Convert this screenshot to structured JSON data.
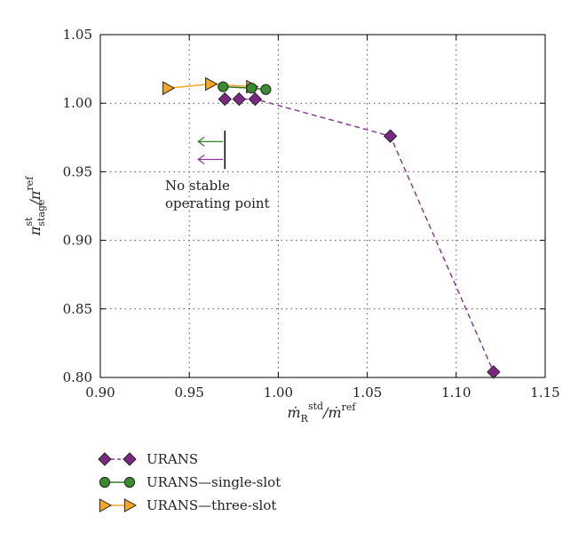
{
  "chart_data": {
    "type": "scatter",
    "xlim": [
      0.9,
      1.15
    ],
    "ylim": [
      0.8,
      1.05
    ],
    "x_ticks": [
      0.9,
      0.95,
      1.0,
      1.05,
      1.1,
      1.15
    ],
    "y_ticks": [
      0.8,
      0.85,
      0.9,
      0.95,
      1.0,
      1.05
    ],
    "x_tick_labels": [
      "0.90",
      "0.95",
      "1.00",
      "1.05",
      "1.10",
      "1.15"
    ],
    "y_tick_labels": [
      "0.80",
      "0.85",
      "0.90",
      "0.95",
      "1.00",
      "1.05"
    ],
    "grid": true,
    "xlabel": {
      "main": "ṁ",
      "sub": "R",
      "sup": "std",
      "tail": "/ṁ",
      "tail_sup": "ref"
    },
    "ylabel": {
      "main": "π",
      "sub": "stage",
      "sup": "st",
      "tail": "/π",
      "tail_sup": "ref"
    },
    "legend_position": "below",
    "series": [
      {
        "name": "URANS",
        "marker": "diamond",
        "color": "#7b2882",
        "line_color": "#8a3d96",
        "dashed": true,
        "x": [
          0.97,
          0.978,
          0.987,
          1.063,
          1.121
        ],
        "y": [
          1.003,
          1.003,
          1.003,
          0.976,
          0.804
        ]
      },
      {
        "name": "URANS—single-slot",
        "marker": "circle",
        "color": "#3a8a2e",
        "line_color": "#2f7a25",
        "dashed": false,
        "x": [
          0.969,
          0.985,
          0.993
        ],
        "y": [
          1.012,
          1.011,
          1.01
        ]
      },
      {
        "name": "URANS—three-slot",
        "marker": "triangle-right",
        "color": "#f5a623",
        "line_color": "#f5a623",
        "dashed": false,
        "x": [
          0.938,
          0.962,
          0.985
        ],
        "y": [
          1.011,
          1.014,
          1.012
        ]
      }
    ],
    "annotation": {
      "lines": [
        "No stable",
        "operating point"
      ],
      "bar_x": 0.97,
      "bar_y": [
        0.952,
        0.98
      ],
      "arrows": [
        {
          "color": "#3a8a2e",
          "x_from": 0.969,
          "x_to": 0.955,
          "y": 0.972
        },
        {
          "color": "#8a3d96",
          "x_from": 0.969,
          "x_to": 0.955,
          "y": 0.959
        }
      ]
    }
  }
}
